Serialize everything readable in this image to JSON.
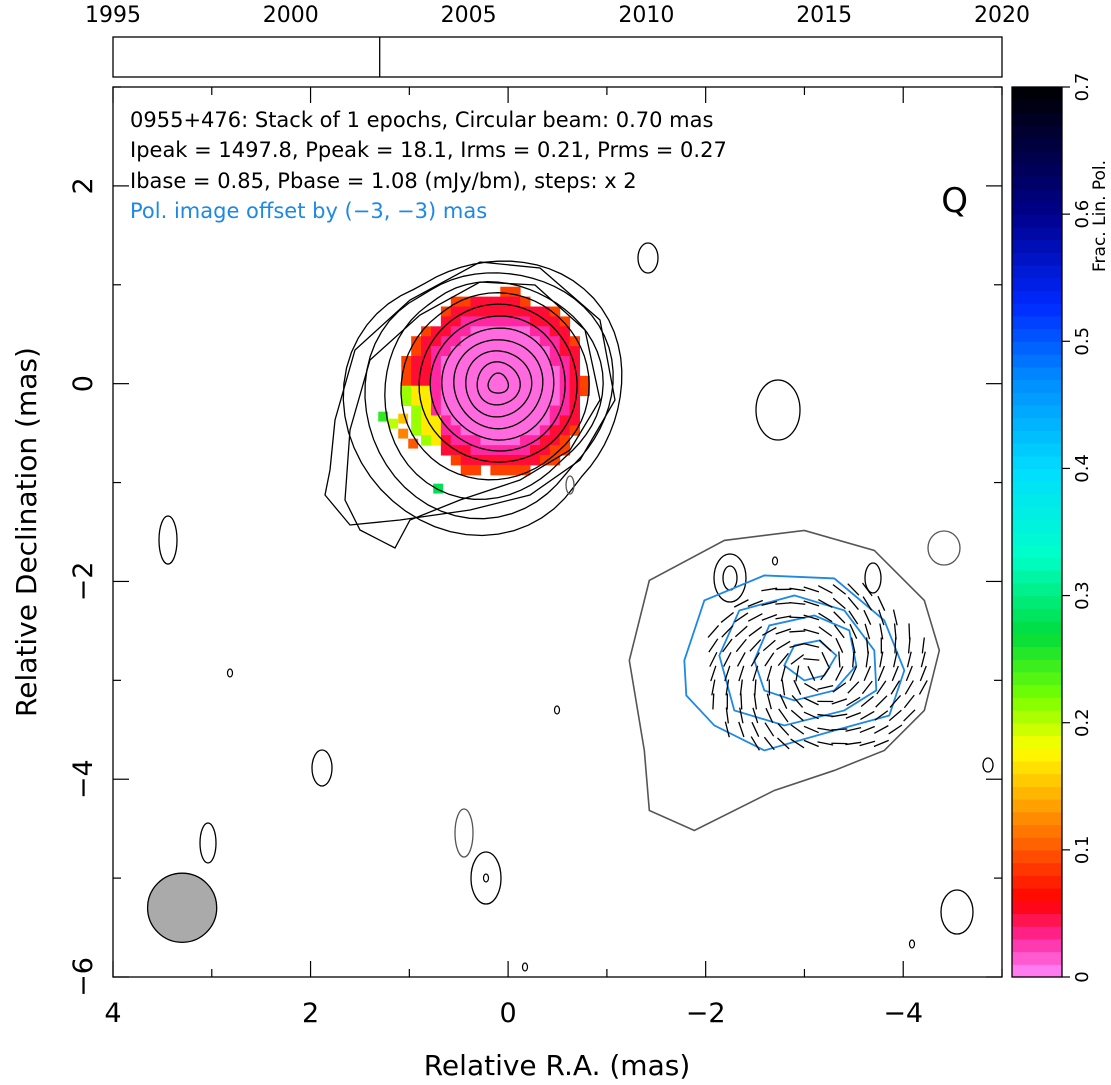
{
  "chart_data": {
    "type": "heatmap",
    "title_lines": [
      "0955+476: Stack of 1 epochs, Circular beam: 0.70 mas",
      "Ipeak = 1497.8, Ppeak = 18.1, Irms = 0.21, Prms = 0.27",
      "Ibase = 0.85, Pbase = 1.08 (mJy/bm), steps: x 2"
    ],
    "pol_offset_note": "Pol. image offset by (−3, −3) mas",
    "band_label": "Q",
    "xlabel": "Relative R.A. (mas)",
    "ylabel": "Relative Declination (mas)",
    "xlim": [
      4,
      -5
    ],
    "ylim": [
      -6,
      3
    ],
    "x_ticks": [
      4,
      2,
      0,
      -2,
      -4
    ],
    "x_tick_labels": [
      "4",
      "2",
      "0",
      "−2",
      "−4"
    ],
    "y_ticks": [
      2,
      0,
      -2,
      -4,
      -6
    ],
    "y_tick_labels": [
      "2",
      "0",
      "−2",
      "−4",
      "−6"
    ],
    "timeline": {
      "range": [
        1995,
        2020
      ],
      "tick_labels": [
        "1995",
        "2000",
        "2005",
        "2010",
        "2015",
        "2020"
      ],
      "tick_years": [
        1995,
        2000,
        2005,
        2010,
        2015,
        2020
      ],
      "epochs": [
        2002.5
      ]
    },
    "colorbar": {
      "label": "Frac. Lin. Pol.",
      "range": [
        0,
        0.7
      ],
      "ticks": [
        0,
        0.1,
        0.2,
        0.3,
        0.4,
        0.5,
        0.6,
        0.7
      ],
      "tick_labels": [
        "0",
        "0.1",
        "0.2",
        "0.3",
        "0.4",
        "0.5",
        "0.6",
        "0.7"
      ]
    },
    "core": {
      "ra": 0.1,
      "dec": 0.0,
      "contour_levels": 11,
      "max_radius_mas": 1.2
    },
    "beam": {
      "ra": 3.3,
      "dec": -5.3,
      "diameter_mas": 0.7
    },
    "pol_image_center": {
      "ra": -3.1,
      "dec": -2.9
    },
    "colors": {
      "stokes_i": "#000000",
      "pol_contour": "#1e88e5",
      "pol_outer": "#555555",
      "beam_fill": "#aaaaaa",
      "offset_note": "#1e88e5"
    }
  }
}
